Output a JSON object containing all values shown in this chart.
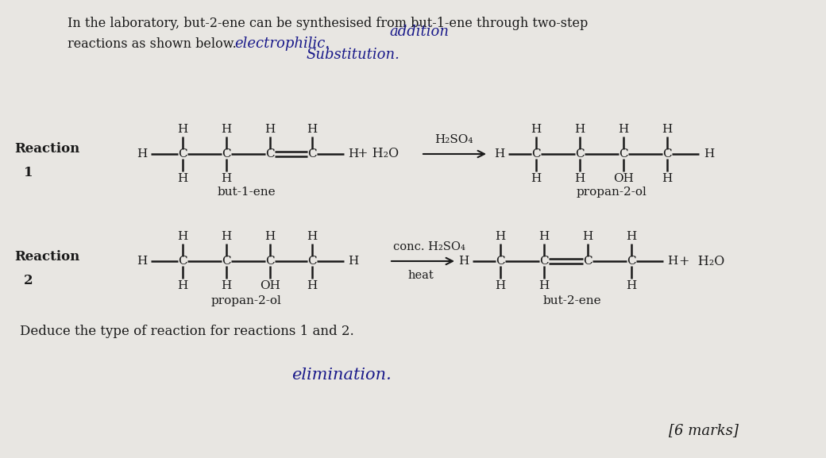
{
  "bg_color": "#e8e6e2",
  "text_color": "#1a1a1a",
  "title_line1": "In the laboratory, but-2-ene can be synthesised from but-1-ene through two-step",
  "title_line2": "reactions as shown below.",
  "hw_electrophilic": "electrophilic.",
  "hw_addition": "addition",
  "hw_substitution": "Substitution.",
  "reaction1_label": "Reaction",
  "reaction1_num": "1",
  "reaction2_label": "Reaction",
  "reaction2_num": "2",
  "but1ene_label": "but-1-ene",
  "propan2ol_label1": "propan-2-ol",
  "propan2ol_label2": "propan-2-ol",
  "but2ene_label": "but-2-ene",
  "reagent1": "H₂SO₄",
  "reagent2_line1": "conc. H₂SO₄",
  "reagent2_line2": "heat",
  "plus_h2o1": "+ H₂O",
  "plus_h2o2": "+  H₂O",
  "deduce_text": "Deduce the type of reaction for reactions 1 and 2.",
  "hw_elimination": "elimination.",
  "marks_text": "[6 marks]"
}
